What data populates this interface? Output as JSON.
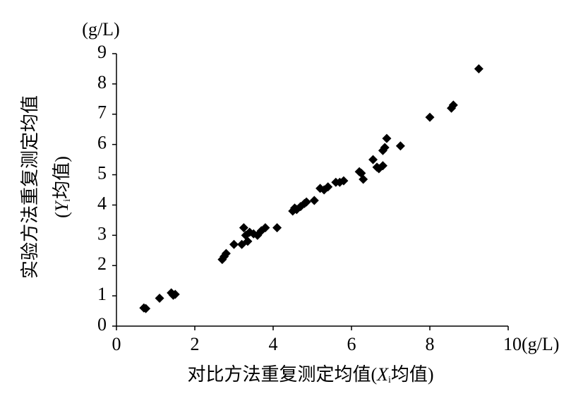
{
  "chart_data": {
    "type": "scatter",
    "y_unit": "(g/L)",
    "ylabel_lines": [
      [
        "实验方法重复测定均值"
      ],
      [
        "(",
        "Y",
        "i",
        "均值)"
      ]
    ],
    "xlabel_parts": [
      "对比方法重复测定均值(",
      "X",
      "i",
      "均值)"
    ],
    "x": [
      0.7,
      0.75,
      1.1,
      1.4,
      1.5,
      1.45,
      2.7,
      2.75,
      2.8,
      3.0,
      3.2,
      3.25,
      3.3,
      3.35,
      3.4,
      3.5,
      3.6,
      3.7,
      3.8,
      4.1,
      4.5,
      4.55,
      4.6,
      4.7,
      4.8,
      4.85,
      5.05,
      5.2,
      5.3,
      5.4,
      5.6,
      5.7,
      5.8,
      6.2,
      6.25,
      6.3,
      6.55,
      6.65,
      6.7,
      6.8,
      6.8,
      6.85,
      6.9,
      7.25,
      8.0,
      8.55,
      8.6,
      9.25
    ],
    "series": [
      {
        "color": "#000000",
        "values": [
          0.6,
          0.58,
          0.92,
          1.1,
          1.05,
          1.02,
          2.2,
          2.3,
          2.4,
          2.7,
          2.7,
          3.25,
          3.0,
          2.8,
          3.1,
          3.05,
          3.0,
          3.15,
          3.25,
          3.25,
          3.8,
          3.9,
          3.85,
          3.95,
          4.05,
          4.1,
          4.15,
          4.55,
          4.5,
          4.6,
          4.75,
          4.75,
          4.8,
          5.1,
          5.05,
          4.85,
          5.5,
          5.25,
          5.2,
          5.3,
          5.8,
          5.9,
          6.2,
          5.95,
          6.9,
          7.2,
          7.3,
          8.5
        ]
      }
    ],
    "xlim": [
      0,
      10
    ],
    "xticks": [
      0,
      2,
      4,
      6,
      8,
      {
        "value": 10,
        "label": "10(g/L)"
      }
    ],
    "ylim": [
      0,
      9
    ],
    "yticks": [
      0,
      1,
      2,
      3,
      4,
      5,
      6,
      7,
      8,
      9
    ],
    "marker": "diamond"
  }
}
